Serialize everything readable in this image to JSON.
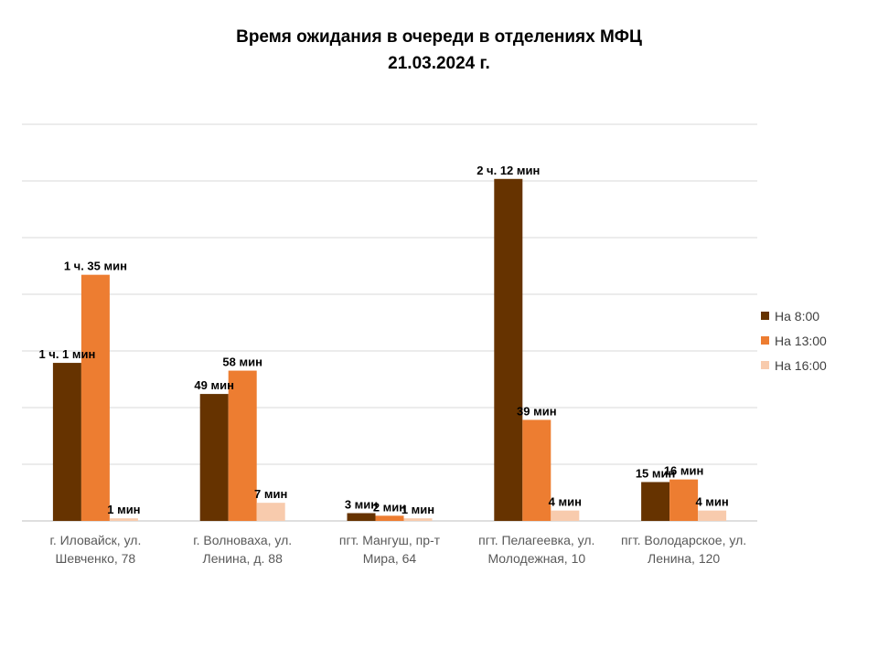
{
  "chart_data": {
    "type": "bar",
    "title": [
      "Время ожидания в очереди в отделениях МФЦ",
      "21.03.2024   г."
    ],
    "categories": [
      [
        "г. Иловайск, ул.",
        "Шевченко, 78"
      ],
      [
        "г. Волноваха, ул.",
        "Ленина, д. 88"
      ],
      [
        "пгт. Мангуш, пр-т",
        "Мира, 64"
      ],
      [
        "пгт. Пелагеевка, ул.",
        "Молодежная, 10"
      ],
      [
        "пгт. Володарское, ул.",
        "Ленина, 120"
      ]
    ],
    "series": [
      {
        "name": "На 8:00",
        "color": "#663300",
        "values": [
          61,
          49,
          3,
          132,
          15
        ],
        "labels": [
          "1 ч. 1 мин",
          "49 мин",
          "3 мин",
          "2 ч. 12 мин",
          "15 мин"
        ]
      },
      {
        "name": "На 13:00",
        "color": "#ED7D31",
        "values": [
          95,
          58,
          2,
          39,
          16
        ],
        "labels": [
          "1 ч. 35 мин",
          "58 мин",
          "2 мин",
          "39 мин",
          "16 мин"
        ]
      },
      {
        "name": "На 16:00",
        "color": "#F8CBAD",
        "values": [
          1,
          7,
          1,
          4,
          4
        ],
        "labels": [
          "1 мин",
          "7 мин",
          "1 мин",
          "4 мин",
          "4 мин"
        ]
      }
    ],
    "grid": true,
    "legend": "right"
  }
}
